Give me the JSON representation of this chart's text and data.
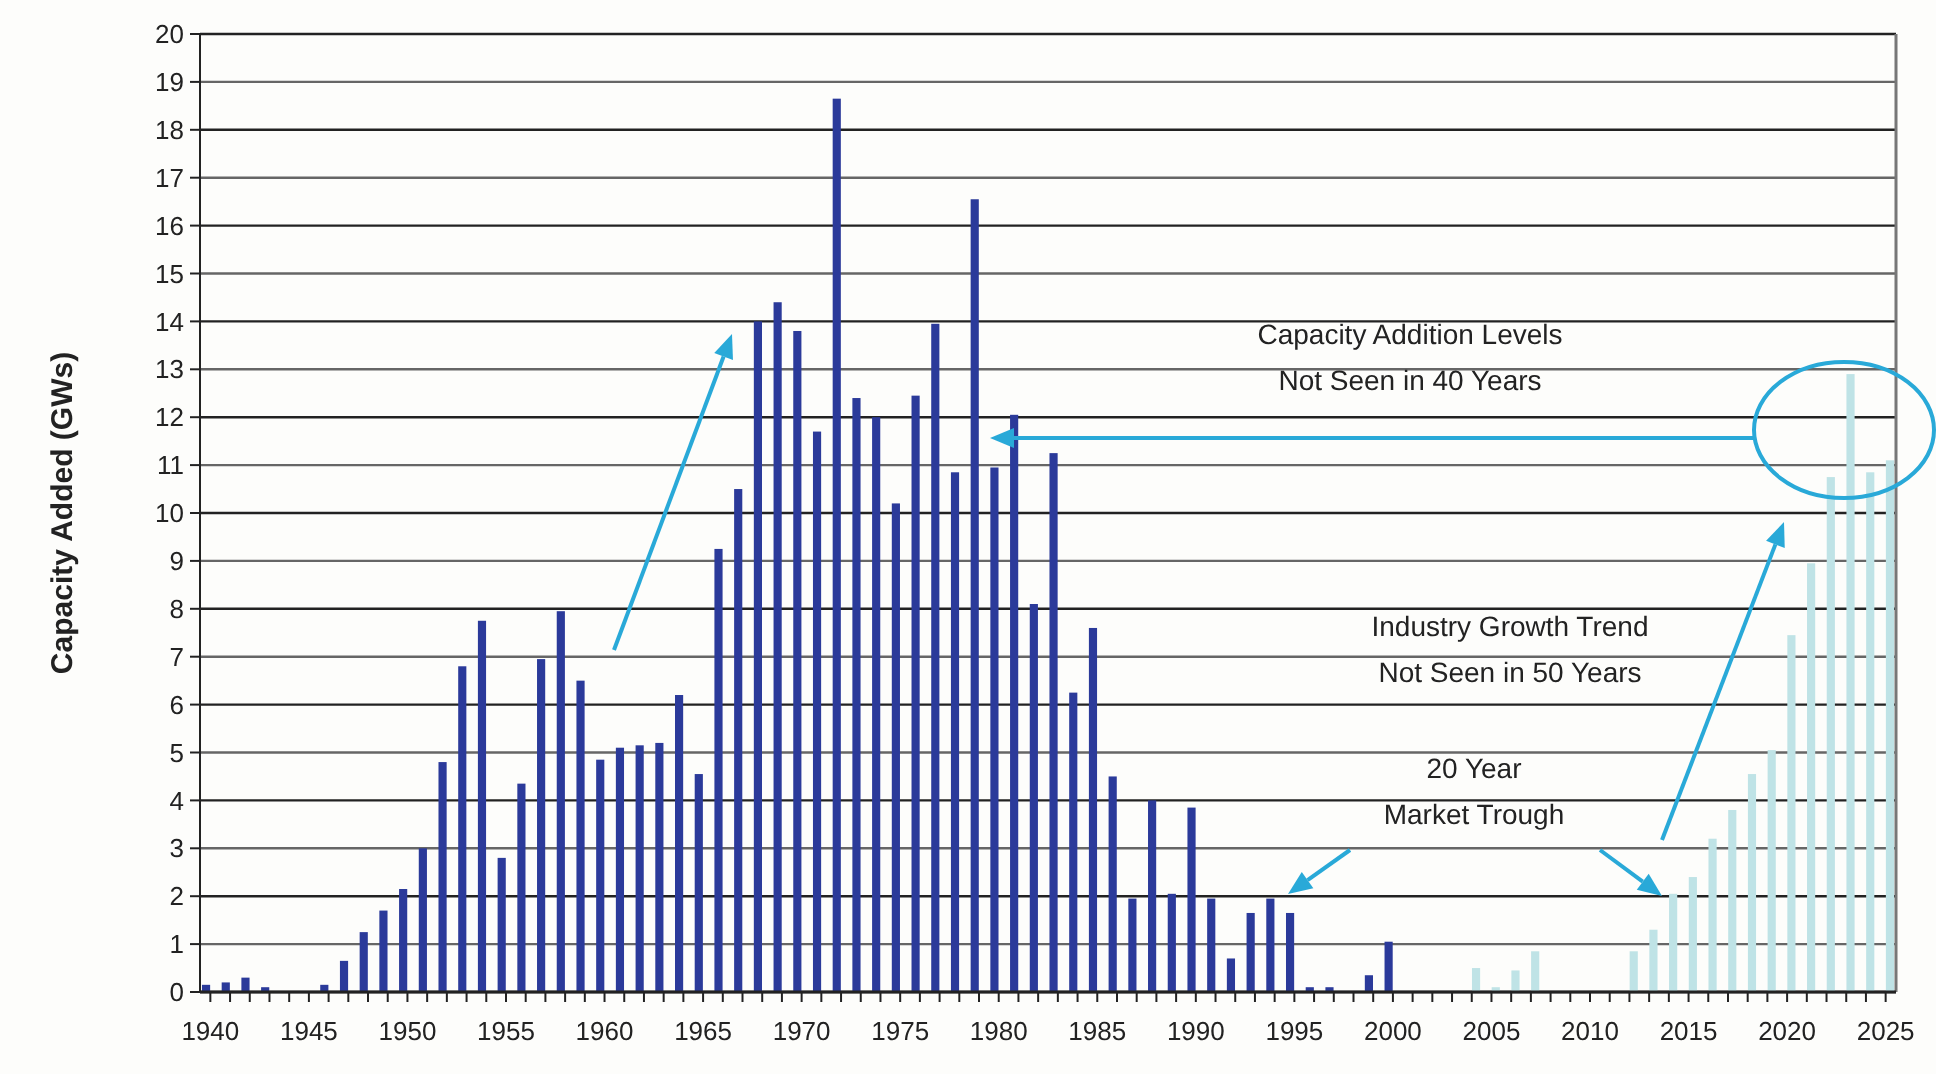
{
  "chart_data": {
    "type": "bar",
    "ylabel": "Capacity Added (GWs)",
    "categories": [
      "1940",
      null,
      null,
      null,
      null,
      "1945",
      null,
      null,
      null,
      null,
      "1950",
      null,
      null,
      null,
      null,
      "1955",
      null,
      null,
      null,
      null,
      "1960",
      null,
      null,
      null,
      null,
      "1965",
      null,
      null,
      null,
      null,
      "1970",
      null,
      null,
      null,
      null,
      "1975",
      null,
      null,
      null,
      null,
      "1980",
      null,
      null,
      null,
      null,
      "1985",
      null,
      null,
      null,
      null,
      "1990",
      null,
      null,
      null,
      null,
      "1995",
      null,
      null,
      null,
      null,
      "2000",
      null,
      null,
      null,
      null,
      "2005",
      null,
      null,
      null,
      null,
      "2010",
      null,
      null,
      null,
      null,
      "2015",
      null,
      null,
      null,
      null,
      "2020",
      null,
      null,
      null,
      null,
      "2025"
    ],
    "series": [
      {
        "color": "#2b3a9a",
        "values": [
          0.15,
          0.2,
          0.3,
          0.1,
          0,
          0,
          0.15,
          0.65,
          1.25,
          1.7,
          2.15,
          3.0,
          4.8,
          6.8,
          7.75,
          2.8,
          4.35,
          6.95,
          7.95,
          6.5,
          4.85,
          5.1,
          5.15,
          5.2,
          6.2,
          4.55,
          9.25,
          10.5,
          14.0,
          14.4,
          13.8,
          11.7,
          18.65,
          12.4,
          12.0,
          10.2,
          12.45,
          13.95,
          10.85,
          16.55,
          10.95,
          12.05,
          8.1,
          11.25,
          6.25,
          7.6,
          4.5,
          1.95,
          4.0,
          2.05,
          3.85,
          1.95,
          0.7,
          1.65,
          1.95,
          1.65,
          0.1,
          0.1,
          0,
          0.35,
          1.05,
          null,
          null,
          null,
          null,
          null,
          null,
          null,
          null,
          null,
          null,
          null,
          null,
          null,
          null,
          null,
          null,
          null,
          null,
          null,
          null,
          null,
          null,
          null,
          null,
          null
        ]
      },
      {
        "color": "#bfe3e6",
        "values": [
          null,
          null,
          null,
          null,
          null,
          null,
          null,
          null,
          null,
          null,
          null,
          null,
          null,
          null,
          null,
          null,
          null,
          null,
          null,
          null,
          null,
          null,
          null,
          null,
          null,
          null,
          null,
          null,
          null,
          null,
          null,
          null,
          null,
          null,
          null,
          null,
          null,
          null,
          null,
          null,
          null,
          null,
          null,
          null,
          null,
          null,
          null,
          null,
          null,
          null,
          null,
          null,
          null,
          null,
          null,
          null,
          null,
          null,
          null,
          null,
          null,
          null,
          null,
          null,
          0.5,
          0.1,
          0.45,
          0.85,
          0,
          0,
          0,
          0,
          0.85,
          1.3,
          2.05,
          2.4,
          3.2,
          3.8,
          4.55,
          5.05,
          7.45,
          8.95,
          10.75,
          12.9,
          10.85,
          11.1
        ]
      }
    ],
    "ylim": [
      0,
      20
    ],
    "yticks": [
      0,
      1,
      2,
      3,
      4,
      5,
      6,
      7,
      8,
      9,
      10,
      11,
      12,
      13,
      14,
      15,
      16,
      17,
      18,
      19,
      20
    ],
    "grid": "y",
    "annotations": [
      "Capacity Addition Levels\nNot Seen in 40 Years",
      "Industry Growth Trend\nNot Seen in 50 Years",
      "20 Year\nMarket Trough"
    ]
  }
}
